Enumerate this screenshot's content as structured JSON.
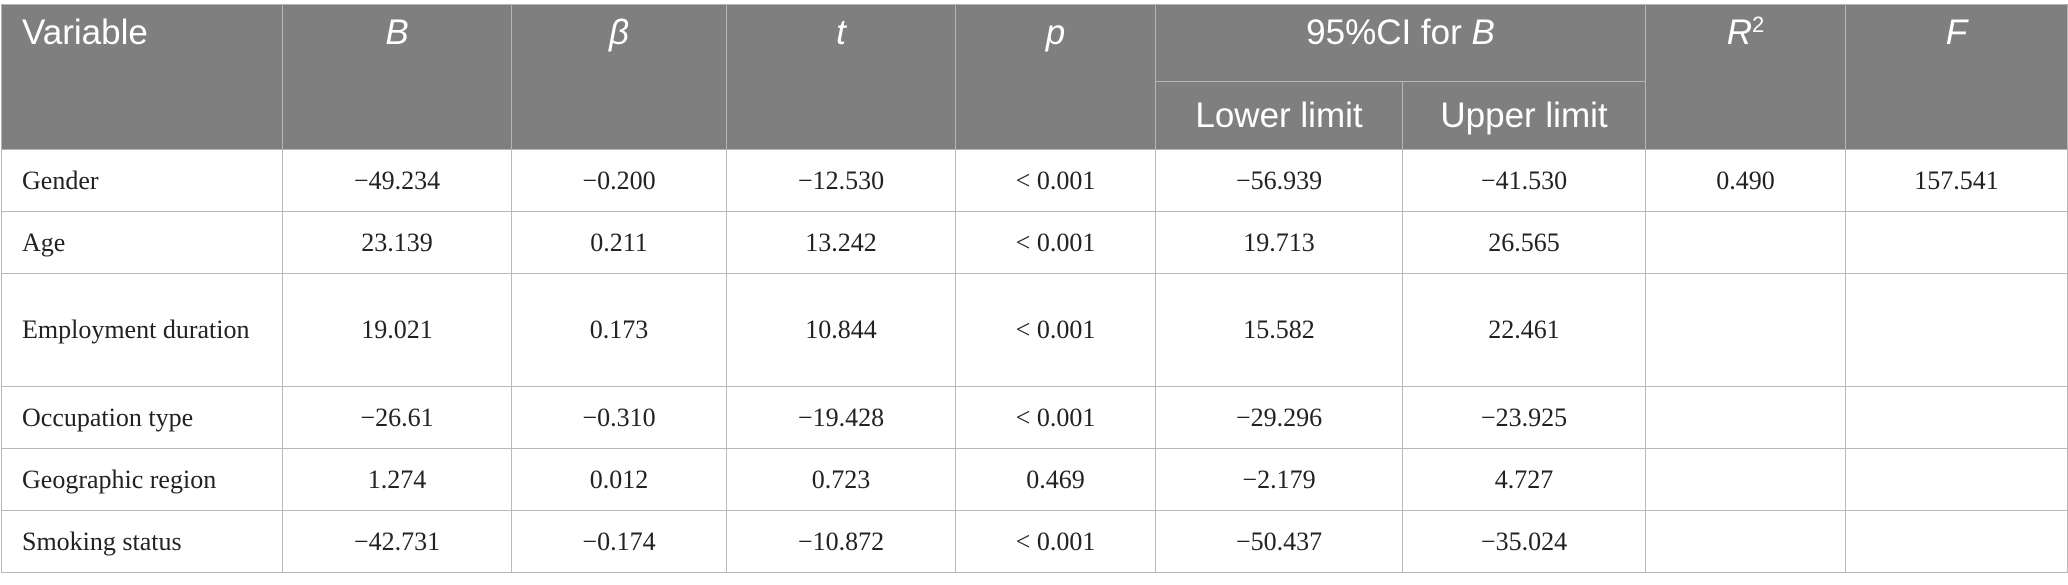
{
  "table": {
    "headers": {
      "variable": "Variable",
      "b": "B",
      "beta": "β",
      "t": "t",
      "p": "p",
      "ci_prefix": "95%CI for ",
      "ci_b": "B",
      "lower": "Lower limit",
      "upper": "Upper limit",
      "r": "R",
      "r_sup": "2",
      "f": "F"
    },
    "rows": [
      {
        "variable": "Gender",
        "b": "−49.234",
        "beta": "−0.200",
        "t": "−12.530",
        "p": "< 0.001",
        "lower": "−56.939",
        "upper": "−41.530"
      },
      {
        "variable": "Age",
        "b": "23.139",
        "beta": "0.211",
        "t": "13.242",
        "p": "< 0.001",
        "lower": "19.713",
        "upper": "26.565"
      },
      {
        "variable": "Employment duration",
        "b": "19.021",
        "beta": "0.173",
        "t": "10.844",
        "p": "< 0.001",
        "lower": "15.582",
        "upper": "22.461"
      },
      {
        "variable": "Occupation type",
        "b": "−26.61",
        "beta": "−0.310",
        "t": "−19.428",
        "p": "< 0.001",
        "lower": "−29.296",
        "upper": "−23.925"
      },
      {
        "variable": "Geographic region",
        "b": "1.274",
        "beta": "0.012",
        "t": "0.723",
        "p": "0.469",
        "lower": "−2.179",
        "upper": "4.727"
      },
      {
        "variable": "Smoking status",
        "b": "−42.731",
        "beta": "−0.174",
        "t": "−10.872",
        "p": "< 0.001",
        "lower": "−50.437",
        "upper": "−35.024"
      }
    ],
    "r2": "0.490",
    "f": "157.541"
  }
}
